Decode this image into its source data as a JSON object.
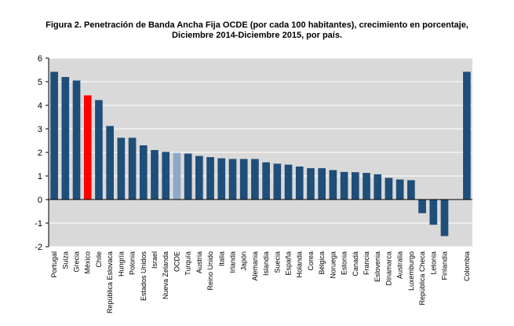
{
  "title_line1": "Figura 2. Penetración de Banda Ancha Fija OCDE (por cada 100 habitantes), crecimiento en porcentaje,",
  "title_line2": "Diciembre 2014-Diciembre 2015, por país.",
  "colors": {
    "bar": "#1f4e79",
    "highlight": "#ff0000",
    "oecd": "#8ea9c8",
    "plot_bg": "#d9d9d9",
    "grid": "#ffffff"
  },
  "chart_data": {
    "type": "bar",
    "title": "Figura 2. Penetración de Banda Ancha Fija OCDE (por cada 100 habitantes), crecimiento en porcentaje, Diciembre 2014-Diciembre 2015, por país.",
    "xlabel": "",
    "ylabel": "",
    "ylim": [
      -2,
      6
    ],
    "yticks": [
      6,
      5,
      4,
      3,
      2,
      1,
      0,
      -1,
      -2
    ],
    "grid": true,
    "categories": [
      "Portugal",
      "Suiza",
      "Grecia",
      "México",
      "Chile",
      "República Eslovaca",
      "Hungría",
      "Polonia",
      "Estados Unidos",
      "Israel",
      "Nueva Zelanda",
      "OCDE",
      "Turquía",
      "Austria",
      "Reino Unido",
      "Italia",
      "Irlanda",
      "Japón",
      "Alemania",
      "Islandia",
      "Suecia",
      "España",
      "Holanda",
      "Corea",
      "Bélgica",
      "Noruega",
      "Estonia",
      "Canadá",
      "Francia",
      "Eslovenia",
      "Dinamarca",
      "Australia",
      "Luxemburgo",
      "República Checa",
      "Letonia",
      "Finlandia",
      "",
      "Colombia"
    ],
    "values": [
      5.42,
      5.2,
      5.05,
      4.42,
      4.22,
      3.12,
      2.62,
      2.62,
      2.3,
      2.1,
      2.02,
      1.98,
      1.95,
      1.85,
      1.8,
      1.75,
      1.72,
      1.72,
      1.72,
      1.58,
      1.52,
      1.48,
      1.4,
      1.33,
      1.33,
      1.25,
      1.17,
      1.16,
      1.13,
      1.07,
      0.92,
      0.85,
      0.82,
      -0.58,
      -1.07,
      -1.55,
      null,
      5.42
    ],
    "highlight": {
      "México": "highlight",
      "OCDE": "oecd"
    }
  }
}
